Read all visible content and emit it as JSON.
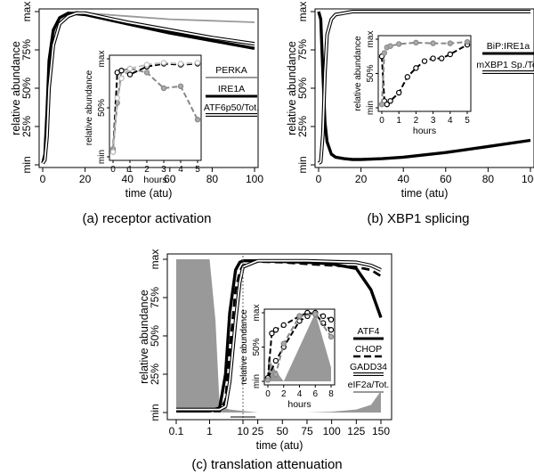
{
  "figure": {
    "panels": [
      {
        "caption": "(a) receptor activation"
      },
      {
        "caption": "(b) XBP1 splicing"
      },
      {
        "caption": "(c) translation attenuation"
      }
    ]
  },
  "chart_data": [
    {
      "type": "line",
      "panel": "a",
      "xlabel": "time (atu)",
      "ylabel": "relative abundance",
      "xlim": [
        0,
        100
      ],
      "xticks": [
        "0",
        "20",
        "40",
        "60",
        "80",
        "100"
      ],
      "ylim": [
        0,
        1
      ],
      "yticks": [
        "min",
        "25%",
        "50%",
        "75%",
        "max"
      ],
      "legend": [
        {
          "name": "PERKA",
          "style": "gray"
        },
        {
          "name": "IRE1A",
          "style": "thick black"
        },
        {
          "name": "ATF6p50/Tot.",
          "style": "double"
        }
      ],
      "series": [
        {
          "name": "PERKA",
          "style": "gray",
          "x": [
            0,
            1,
            2,
            3,
            5,
            8,
            12,
            16,
            20,
            30,
            40,
            60,
            80,
            100
          ],
          "y": [
            0.01,
            0.06,
            0.3,
            0.62,
            0.85,
            0.95,
            0.99,
            1.0,
            0.99,
            0.98,
            0.97,
            0.95,
            0.94,
            0.93
          ]
        },
        {
          "name": "IRE1A",
          "style": "thick black",
          "x": [
            0,
            1,
            2,
            3,
            5,
            8,
            12,
            16,
            20,
            30,
            40,
            60,
            80,
            100
          ],
          "y": [
            0.01,
            0.07,
            0.35,
            0.68,
            0.88,
            0.96,
            0.99,
            0.985,
            0.98,
            0.95,
            0.92,
            0.86,
            0.81,
            0.76
          ]
        },
        {
          "name": "ATF6p50/Tot.",
          "style": "double",
          "x": [
            0,
            1,
            2,
            3,
            5,
            8,
            12,
            16,
            20,
            30,
            40,
            60,
            80,
            100
          ],
          "y": [
            0.01,
            0.03,
            0.18,
            0.5,
            0.78,
            0.92,
            0.97,
            0.99,
            0.99,
            0.96,
            0.93,
            0.88,
            0.83,
            0.79
          ]
        }
      ],
      "inset": {
        "xlabel": "hours",
        "ylabel": "relative abundance",
        "xlim": [
          0,
          5
        ],
        "xticks": [
          "0",
          "1",
          "2",
          "3",
          "4",
          "5"
        ],
        "yticks": [
          "min",
          "50%",
          "max"
        ],
        "series": [
          {
            "name": "PERKA",
            "marker": "gray",
            "x": [
              0,
              0.25,
              0.5,
              1,
              2,
              3,
              4,
              5
            ],
            "y": [
              0.08,
              0.55,
              0.88,
              0.9,
              0.86,
              0.7,
              0.72,
              0.38
            ]
          },
          {
            "name": "IRE1A",
            "marker": "black",
            "x": [
              0,
              0.25,
              0.5,
              1,
              2,
              3,
              4,
              5
            ],
            "y": [
              0.05,
              0.86,
              0.88,
              0.84,
              0.92,
              0.95,
              0.94,
              0.95
            ]
          },
          {
            "name": "ATF6p50/Tot.",
            "marker": "lightgray",
            "x": [
              0,
              0.25,
              0.5,
              1,
              2,
              3,
              4,
              5
            ],
            "y": [
              0.05,
              0.6,
              0.8,
              0.9,
              0.94,
              0.96,
              0.95,
              0.96
            ]
          }
        ]
      }
    },
    {
      "type": "line",
      "panel": "b",
      "xlabel": "time (atu)",
      "ylabel": "relative abundance",
      "xlim": [
        0,
        100
      ],
      "xticks": [
        "0",
        "20",
        "40",
        "60",
        "80",
        "100"
      ],
      "ylim": [
        0,
        1
      ],
      "yticks": [
        "min",
        "25%",
        "50%",
        "75%",
        "max"
      ],
      "legend": [
        {
          "name": "BiP:IRE1a",
          "style": "thick black"
        },
        {
          "name": "mXBP1 Sp./Tot",
          "style": "double"
        }
      ],
      "series": [
        {
          "name": "BiP:IRE1a",
          "style": "thick black",
          "x": [
            0,
            1,
            2,
            3,
            4,
            6,
            8,
            12,
            16,
            20,
            30,
            40,
            60,
            80,
            100
          ],
          "y": [
            1.0,
            0.95,
            0.6,
            0.28,
            0.15,
            0.07,
            0.05,
            0.04,
            0.035,
            0.035,
            0.04,
            0.05,
            0.08,
            0.12,
            0.16
          ]
        },
        {
          "name": "mXBP1 Sp./Tot",
          "style": "double",
          "x": [
            0,
            1,
            2,
            3,
            4,
            6,
            8,
            12,
            16,
            20,
            40,
            60,
            80,
            100
          ],
          "y": [
            0.01,
            0.02,
            0.2,
            0.6,
            0.85,
            0.95,
            0.98,
            0.99,
            1.0,
            1.0,
            1.0,
            1.0,
            1.0,
            1.0
          ]
        }
      ],
      "inset": {
        "xlabel": "hours",
        "ylabel": "relative abundance",
        "xlim": [
          0,
          5
        ],
        "xticks": [
          "0",
          "1",
          "2",
          "3",
          "4",
          "5"
        ],
        "yticks": [
          "min",
          "50%",
          "max"
        ],
        "series": [
          {
            "name": "BiP:IRE1a",
            "marker": "black",
            "x": [
              0,
              0.15,
              0.3,
              0.5,
              1,
              1.5,
              2,
              2.5,
              3,
              3.5,
              4,
              5
            ],
            "y": [
              0.75,
              0.1,
              0.05,
              0.1,
              0.22,
              0.45,
              0.58,
              0.68,
              0.72,
              0.72,
              0.78,
              0.92
            ]
          },
          {
            "name": "mXBP1 Sp./Tot",
            "marker": "gray",
            "x": [
              0,
              0.15,
              0.3,
              0.5,
              1,
              2,
              3,
              4,
              5
            ],
            "y": [
              0.05,
              0.8,
              0.88,
              0.9,
              0.93,
              0.95,
              0.94,
              0.94,
              0.96
            ]
          }
        ]
      }
    },
    {
      "type": "line",
      "panel": "c",
      "xlabel": "time (atu)",
      "ylabel": "relative abundance",
      "xscale": "split: log from 0.1 to 10, linear from 10 to 150",
      "xticks": [
        "0.1",
        "1",
        "10",
        "25",
        "50",
        "75",
        "100",
        "125",
        "150"
      ],
      "ylim": [
        0,
        1
      ],
      "yticks": [
        "min",
        "25%",
        "50%",
        "75%",
        "max"
      ],
      "legend": [
        {
          "name": "ATF4",
          "style": "thick black"
        },
        {
          "name": "CHOP",
          "style": "dashed"
        },
        {
          "name": "GADD34",
          "style": "double"
        },
        {
          "name": "eIF2a/Tot.",
          "style": "gray fill"
        }
      ],
      "series": [
        {
          "name": "eIF2a/Tot.",
          "style": "gray fill",
          "x": [
            0.1,
            0.5,
            1,
            1.5,
            2,
            4,
            10,
            25,
            50,
            75,
            100,
            125,
            140,
            150
          ],
          "y": [
            1.0,
            1.0,
            1.0,
            0.6,
            0.04,
            0.02,
            0.01,
            0.0,
            0.0,
            0.0,
            0.005,
            0.02,
            0.05,
            0.14
          ]
        },
        {
          "name": "ATF4",
          "style": "thick black",
          "x": [
            0.1,
            1,
            2,
            3,
            4,
            6,
            8,
            10,
            25,
            50,
            75,
            100,
            125,
            140,
            150
          ],
          "y": [
            0.01,
            0.01,
            0.03,
            0.25,
            0.65,
            0.93,
            0.98,
            0.99,
            0.99,
            0.985,
            0.98,
            0.97,
            0.94,
            0.8,
            0.62
          ]
        },
        {
          "name": "CHOP",
          "style": "dashed",
          "x": [
            0.1,
            1,
            2,
            3,
            4,
            6,
            8,
            10,
            25,
            50,
            75,
            100,
            125,
            140,
            150
          ],
          "y": [
            0.01,
            0.01,
            0.01,
            0.08,
            0.4,
            0.8,
            0.92,
            0.96,
            0.985,
            0.98,
            0.97,
            0.96,
            0.95,
            0.93,
            0.89
          ]
        },
        {
          "name": "GADD34",
          "style": "double",
          "x": [
            0.1,
            1,
            2,
            3,
            4,
            6,
            8,
            10,
            25,
            50,
            75,
            100,
            125,
            140,
            150
          ],
          "y": [
            0.02,
            0.02,
            0.02,
            0.04,
            0.2,
            0.6,
            0.85,
            0.95,
            0.99,
            0.99,
            0.99,
            0.985,
            0.98,
            0.96,
            0.93
          ]
        }
      ],
      "inset": {
        "xlabel": "hours",
        "ylabel": "relative abundance",
        "xlim": [
          0,
          8
        ],
        "xticks": [
          "0",
          "2",
          "4",
          "6",
          "8"
        ],
        "yticks": [
          "min",
          "50%",
          "max"
        ],
        "series": [
          {
            "name": "eIF2a/Tot.",
            "style": "gray fill",
            "x": [
              0,
              1,
              2,
              6,
              8
            ],
            "y": [
              0.35,
              0.15,
              0.0,
              1.0,
              0.2
            ]
          },
          {
            "name": "ATF4",
            "marker": "black",
            "x": [
              0,
              0.5,
              1,
              2,
              4,
              5,
              6,
              7,
              8
            ],
            "y": [
              0.05,
              0.7,
              0.75,
              0.82,
              0.95,
              1.0,
              0.98,
              0.85,
              0.75
            ]
          },
          {
            "name": "CHOP",
            "marker": "black",
            "x": [
              0,
              1,
              2,
              4,
              5,
              6,
              7,
              8
            ],
            "y": [
              0.05,
              0.3,
              0.5,
              0.88,
              0.95,
              1.0,
              0.95,
              0.9
            ]
          },
          {
            "name": "GADD34",
            "marker": "gray",
            "x": [
              0,
              1,
              2,
              4,
              6,
              8
            ],
            "y": [
              0.02,
              0.1,
              0.55,
              0.95,
              0.98,
              0.65
            ]
          }
        ]
      }
    }
  ]
}
